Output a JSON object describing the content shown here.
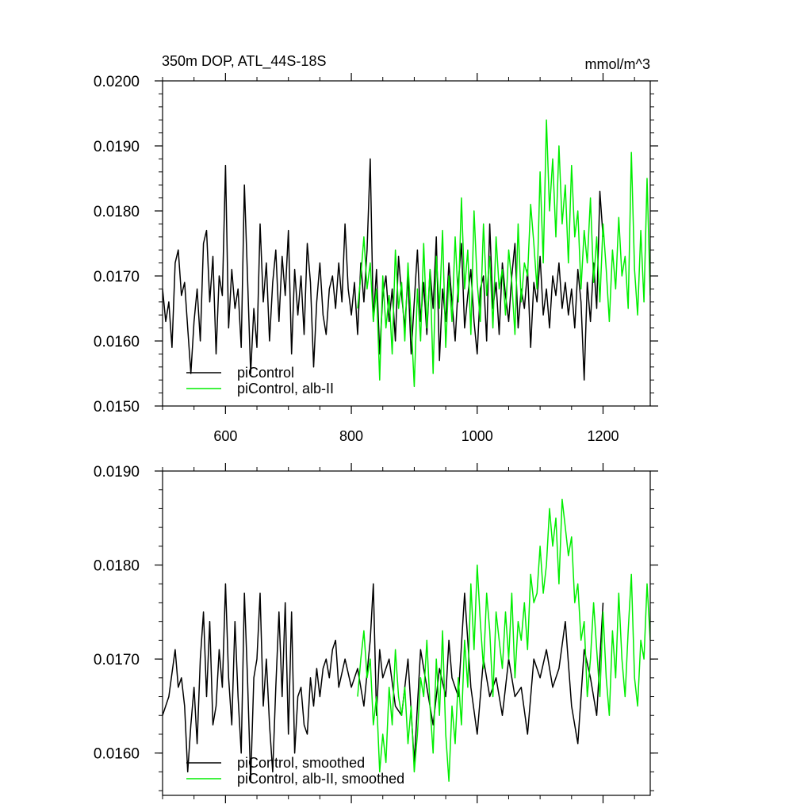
{
  "page": {
    "title": "350m DOP, ATL_44S-18S",
    "units": "mmol/m^3"
  },
  "colors": {
    "picontrol": "#000000",
    "alb": "#00ee00",
    "axis": "#000000"
  },
  "chart_data": [
    {
      "type": "line",
      "title": "350m DOP, ATL_44S-18S",
      "units_label": "mmol/m^3",
      "xlim": [
        500,
        1275
      ],
      "ylim": [
        0.015,
        0.02
      ],
      "xticks": [
        600,
        800,
        1000,
        1200
      ],
      "xtick_labels": [
        "600",
        "800",
        "1000",
        "1200"
      ],
      "yticks": [
        0.015,
        0.016,
        0.017,
        0.018,
        0.019,
        0.02
      ],
      "ytick_labels": [
        "0.0150",
        "0.0160",
        "0.0170",
        "0.0180",
        "0.0190",
        "0.0200"
      ],
      "legend": {
        "position": "bottom-left"
      },
      "series": [
        {
          "name": "piControl",
          "color": "#000000",
          "x": [
            500,
            505,
            510,
            515,
            520,
            525,
            530,
            535,
            540,
            545,
            550,
            555,
            560,
            565,
            570,
            575,
            580,
            585,
            590,
            595,
            600,
            605,
            610,
            615,
            620,
            625,
            630,
            635,
            640,
            645,
            650,
            655,
            660,
            665,
            670,
            675,
            680,
            685,
            690,
            695,
            700,
            705,
            710,
            715,
            720,
            725,
            730,
            735,
            740,
            745,
            750,
            755,
            760,
            765,
            770,
            775,
            780,
            785,
            790,
            795,
            800,
            805,
            810,
            815,
            820,
            825,
            830,
            835,
            840,
            845,
            850,
            855,
            860,
            865,
            870,
            875,
            880,
            885,
            890,
            895,
            900,
            905,
            910,
            915,
            920,
            925,
            930,
            935,
            940,
            945,
            950,
            955,
            960,
            965,
            970,
            975,
            980,
            985,
            990,
            995,
            1000,
            1005,
            1010,
            1015,
            1020,
            1025,
            1030,
            1035,
            1040,
            1045,
            1050,
            1055,
            1060,
            1065,
            1070,
            1075,
            1080,
            1085,
            1090,
            1095,
            1100,
            1105,
            1110,
            1115,
            1120,
            1125,
            1130,
            1135,
            1140,
            1145,
            1150,
            1155,
            1160,
            1165,
            1170,
            1175,
            1180,
            1185,
            1190,
            1195,
            1200
          ],
          "y": [
            0.0168,
            0.0163,
            0.0166,
            0.0159,
            0.0172,
            0.0174,
            0.0167,
            0.0169,
            0.0162,
            0.0155,
            0.0163,
            0.0168,
            0.016,
            0.0175,
            0.0177,
            0.0166,
            0.0173,
            0.0158,
            0.017,
            0.0167,
            0.0187,
            0.0162,
            0.0171,
            0.0165,
            0.0168,
            0.0159,
            0.0184,
            0.017,
            0.0155,
            0.0165,
            0.0159,
            0.0178,
            0.0166,
            0.0172,
            0.016,
            0.0169,
            0.0174,
            0.0163,
            0.0173,
            0.0167,
            0.0177,
            0.0158,
            0.0171,
            0.0164,
            0.017,
            0.0161,
            0.0175,
            0.0169,
            0.0156,
            0.0166,
            0.0172,
            0.0164,
            0.0161,
            0.0168,
            0.017,
            0.0165,
            0.0172,
            0.0166,
            0.0178,
            0.0168,
            0.0164,
            0.0169,
            0.0161,
            0.0172,
            0.0166,
            0.0174,
            0.0188,
            0.0163,
            0.0171,
            0.0158,
            0.0167,
            0.017,
            0.0163,
            0.0168,
            0.016,
            0.0173,
            0.0167,
            0.0162,
            0.017,
            0.0158,
            0.0166,
            0.0174,
            0.0163,
            0.0169,
            0.0161,
            0.0171,
            0.0165,
            0.0176,
            0.0157,
            0.0168,
            0.0163,
            0.0172,
            0.0166,
            0.016,
            0.0169,
            0.0175,
            0.0162,
            0.0167,
            0.0171,
            0.0163,
            0.0158,
            0.0168,
            0.017,
            0.016,
            0.0178,
            0.0165,
            0.0169,
            0.0161,
            0.0172,
            0.0167,
            0.0163,
            0.017,
            0.0175,
            0.0162,
            0.0168,
            0.0165,
            0.0171,
            0.0159,
            0.0169,
            0.0166,
            0.0173,
            0.0164,
            0.0168,
            0.0162,
            0.017,
            0.0167,
            0.0172,
            0.0165,
            0.0169,
            0.0164,
            0.0168,
            0.0162,
            0.0171,
            0.0166,
            0.0154,
            0.0169,
            0.0163,
            0.0172,
            0.0165,
            0.0183,
            0.0176
          ]
        },
        {
          "name": "piControl, alb-II",
          "color": "#00ee00",
          "x": [
            810,
            815,
            820,
            825,
            830,
            835,
            840,
            845,
            850,
            855,
            860,
            865,
            870,
            875,
            880,
            885,
            890,
            895,
            900,
            905,
            910,
            915,
            920,
            925,
            930,
            935,
            940,
            945,
            950,
            955,
            960,
            965,
            970,
            975,
            980,
            985,
            990,
            995,
            1000,
            1005,
            1010,
            1015,
            1020,
            1025,
            1030,
            1035,
            1040,
            1045,
            1050,
            1055,
            1060,
            1065,
            1070,
            1075,
            1080,
            1085,
            1090,
            1095,
            1100,
            1105,
            1110,
            1115,
            1120,
            1125,
            1130,
            1135,
            1140,
            1145,
            1150,
            1155,
            1160,
            1165,
            1170,
            1175,
            1180,
            1185,
            1190,
            1195,
            1200,
            1205,
            1210,
            1215,
            1220,
            1225,
            1230,
            1235,
            1240,
            1245,
            1250,
            1255,
            1260,
            1265,
            1270,
            1275
          ],
          "y": [
            0.0165,
            0.017,
            0.0176,
            0.0168,
            0.0172,
            0.0163,
            0.0168,
            0.0154,
            0.017,
            0.0162,
            0.0167,
            0.0158,
            0.0174,
            0.0165,
            0.0169,
            0.016,
            0.0172,
            0.0163,
            0.0153,
            0.0168,
            0.016,
            0.0175,
            0.0162,
            0.0171,
            0.0155,
            0.0173,
            0.0165,
            0.0177,
            0.0159,
            0.017,
            0.0163,
            0.0176,
            0.0166,
            0.0182,
            0.0168,
            0.0174,
            0.0161,
            0.018,
            0.0169,
            0.0163,
            0.0178,
            0.0167,
            0.0173,
            0.0162,
            0.0176,
            0.0168,
            0.0171,
            0.0164,
            0.0174,
            0.0169,
            0.0161,
            0.0178,
            0.0166,
            0.0172,
            0.017,
            0.0181,
            0.0175,
            0.0168,
            0.0186,
            0.0172,
            0.0194,
            0.018,
            0.0188,
            0.0176,
            0.019,
            0.0178,
            0.0184,
            0.0172,
            0.0187,
            0.0176,
            0.018,
            0.0168,
            0.0177,
            0.0172,
            0.0182,
            0.0169,
            0.0176,
            0.0166,
            0.0178,
            0.0171,
            0.0163,
            0.0174,
            0.0168,
            0.0179,
            0.017,
            0.0173,
            0.0165,
            0.0189,
            0.0171,
            0.0164,
            0.0177,
            0.0166,
            0.0185,
            0.0167
          ]
        }
      ]
    },
    {
      "type": "line",
      "title": "",
      "xlim": [
        500,
        1275
      ],
      "ylim": [
        0.01555,
        0.019
      ],
      "xticks": [
        600,
        800,
        1000,
        1200
      ],
      "yticks": [
        0.016,
        0.017,
        0.018,
        0.019
      ],
      "ytick_labels": [
        "0.0160",
        "0.0170",
        "0.0180",
        "0.0190"
      ],
      "legend": {
        "position": "bottom-left"
      },
      "series": [
        {
          "name": "piControl, smoothed",
          "color": "#000000",
          "x": [
            500,
            510,
            520,
            525,
            530,
            535,
            540,
            545,
            550,
            555,
            560,
            565,
            570,
            575,
            580,
            585,
            590,
            595,
            600,
            605,
            610,
            615,
            620,
            625,
            630,
            635,
            640,
            645,
            650,
            655,
            660,
            665,
            670,
            675,
            680,
            685,
            690,
            695,
            700,
            705,
            710,
            715,
            720,
            725,
            730,
            735,
            740,
            745,
            750,
            755,
            760,
            765,
            770,
            775,
            780,
            790,
            800,
            810,
            820,
            830,
            835,
            840,
            845,
            850,
            860,
            870,
            880,
            890,
            900,
            905,
            910,
            920,
            930,
            940,
            950,
            955,
            960,
            970,
            980,
            990,
            1000,
            1010,
            1020,
            1030,
            1040,
            1050,
            1060,
            1070,
            1080,
            1090,
            1100,
            1110,
            1120,
            1130,
            1140,
            1150,
            1160,
            1170,
            1180,
            1190,
            1200
          ],
          "y": [
            0.0164,
            0.0166,
            0.0171,
            0.0167,
            0.0168,
            0.0165,
            0.0158,
            0.0163,
            0.0167,
            0.0161,
            0.017,
            0.0175,
            0.0166,
            0.0174,
            0.0163,
            0.0165,
            0.0171,
            0.0167,
            0.0178,
            0.0168,
            0.0163,
            0.0174,
            0.0166,
            0.016,
            0.0177,
            0.0168,
            0.0157,
            0.0168,
            0.017,
            0.0177,
            0.0165,
            0.017,
            0.0163,
            0.0158,
            0.0167,
            0.0175,
            0.0166,
            0.0176,
            0.0162,
            0.0175,
            0.016,
            0.0166,
            0.0167,
            0.0163,
            0.0162,
            0.0168,
            0.0165,
            0.0169,
            0.0166,
            0.0169,
            0.017,
            0.0168,
            0.0171,
            0.0172,
            0.0167,
            0.017,
            0.0167,
            0.0169,
            0.0165,
            0.0172,
            0.0178,
            0.0164,
            0.0171,
            0.0168,
            0.017,
            0.0165,
            0.0164,
            0.017,
            0.0159,
            0.0165,
            0.0171,
            0.0167,
            0.0163,
            0.0169,
            0.0166,
            0.0172,
            0.0168,
            0.0166,
            0.0177,
            0.0167,
            0.0162,
            0.017,
            0.0166,
            0.0168,
            0.0164,
            0.017,
            0.0166,
            0.0167,
            0.0162,
            0.017,
            0.0168,
            0.0171,
            0.0167,
            0.0169,
            0.0174,
            0.0165,
            0.0161,
            0.0171,
            0.0168,
            0.0164,
            0.0176
          ]
        },
        {
          "name": "piControl, alb-II, smoothed",
          "color": "#00ee00",
          "x": [
            810,
            815,
            820,
            825,
            830,
            835,
            840,
            845,
            850,
            855,
            860,
            865,
            870,
            875,
            880,
            885,
            890,
            895,
            900,
            905,
            910,
            915,
            920,
            925,
            930,
            935,
            940,
            945,
            950,
            955,
            960,
            965,
            970,
            975,
            980,
            985,
            990,
            995,
            1000,
            1005,
            1010,
            1015,
            1020,
            1025,
            1030,
            1035,
            1040,
            1045,
            1050,
            1055,
            1060,
            1065,
            1070,
            1075,
            1080,
            1085,
            1090,
            1095,
            1100,
            1105,
            1110,
            1115,
            1120,
            1125,
            1130,
            1135,
            1140,
            1145,
            1150,
            1155,
            1160,
            1165,
            1170,
            1175,
            1180,
            1185,
            1190,
            1195,
            1200,
            1205,
            1210,
            1215,
            1220,
            1225,
            1230,
            1235,
            1240,
            1245,
            1250,
            1255,
            1260,
            1265,
            1270,
            1275
          ],
          "y": [
            0.0166,
            0.017,
            0.0173,
            0.0168,
            0.017,
            0.0163,
            0.0166,
            0.0158,
            0.0162,
            0.0159,
            0.0167,
            0.0163,
            0.0171,
            0.0166,
            0.0164,
            0.0167,
            0.0161,
            0.0165,
            0.0158,
            0.0162,
            0.0168,
            0.0166,
            0.0172,
            0.0165,
            0.016,
            0.017,
            0.0164,
            0.0173,
            0.0162,
            0.0157,
            0.0165,
            0.0161,
            0.0168,
            0.0163,
            0.0172,
            0.0167,
            0.0178,
            0.0171,
            0.018,
            0.0174,
            0.0169,
            0.0177,
            0.0173,
            0.0166,
            0.0175,
            0.0172,
            0.0169,
            0.0175,
            0.017,
            0.0177,
            0.0168,
            0.0174,
            0.0172,
            0.0176,
            0.0171,
            0.0179,
            0.0176,
            0.0177,
            0.0182,
            0.0177,
            0.018,
            0.0186,
            0.0182,
            0.0185,
            0.0178,
            0.0187,
            0.0184,
            0.0181,
            0.0183,
            0.0176,
            0.0178,
            0.0172,
            0.0174,
            0.0166,
            0.017,
            0.0176,
            0.0171,
            0.0166,
            0.0175,
            0.0168,
            0.0164,
            0.0173,
            0.0168,
            0.0177,
            0.017,
            0.0166,
            0.0173,
            0.0179,
            0.0168,
            0.0165,
            0.0172,
            0.017,
            0.0178,
            0.0172
          ]
        }
      ]
    }
  ]
}
